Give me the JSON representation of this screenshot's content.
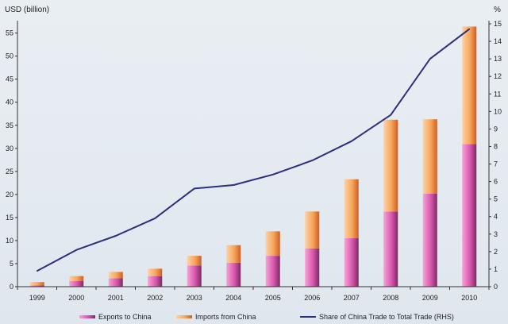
{
  "chart_data": {
    "type": "bar",
    "categories": [
      "1999",
      "2000",
      "2001",
      "2002",
      "2003",
      "2004",
      "2005",
      "2006",
      "2007",
      "2008",
      "2009",
      "2010"
    ],
    "series": [
      {
        "name": "Exports to China",
        "kind": "stacked-bar",
        "axis": "left",
        "values": [
          0.3,
          1.2,
          1.8,
          2.3,
          4.6,
          5.2,
          6.7,
          8.3,
          10.5,
          16.3,
          20.2,
          30.9
        ]
      },
      {
        "name": "Imports from China",
        "kind": "stacked-bar",
        "axis": "left",
        "values": [
          0.7,
          1.1,
          1.4,
          1.6,
          2.1,
          3.8,
          5.3,
          8.0,
          12.8,
          19.9,
          16.1,
          25.5
        ]
      },
      {
        "name": "Share of China Trade to Total Trade (RHS)",
        "kind": "line",
        "axis": "right",
        "values": [
          0.9,
          2.1,
          2.9,
          3.9,
          5.6,
          5.8,
          6.4,
          7.2,
          8.3,
          9.8,
          13.0,
          14.7
        ]
      }
    ],
    "ylabel": "USD (billion)",
    "y2label": "%",
    "ylim": [
      0,
      57
    ],
    "y2lim": [
      0,
      15
    ],
    "yticks": [
      0,
      5,
      10,
      15,
      20,
      25,
      30,
      35,
      40,
      45,
      50,
      55
    ],
    "y2ticks": [
      0,
      1,
      2,
      3,
      4,
      5,
      6,
      7,
      8,
      9,
      10,
      11,
      12,
      13,
      14,
      15
    ],
    "legend_position": "bottom",
    "colors": {
      "exports": "#e44fb4",
      "exports_dark": "#7b2a63",
      "imports": "#f7a55a",
      "imports_dark": "#d2642a",
      "line": "#2b2f7c",
      "axis": "#333333"
    }
  }
}
